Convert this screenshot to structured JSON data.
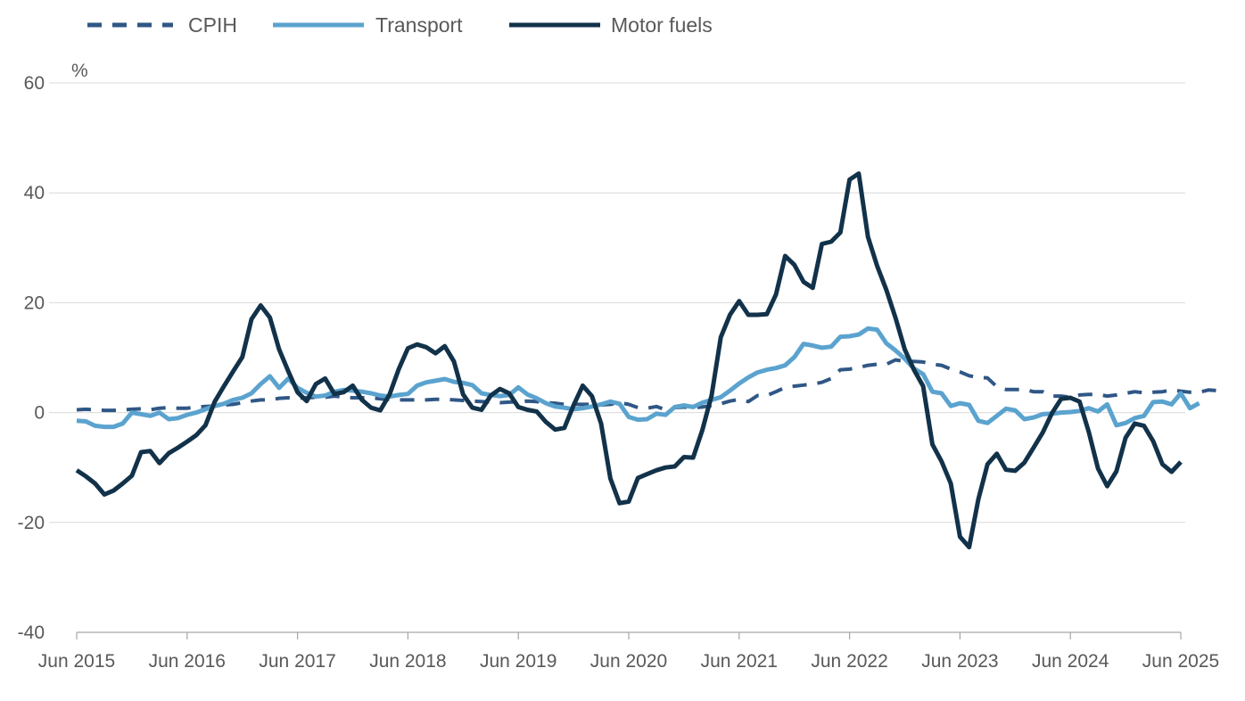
{
  "chart_data": {
    "type": "line",
    "ylabel": "%",
    "ylim": [
      -40,
      60
    ],
    "yticks": [
      -40,
      -20,
      0,
      20,
      40,
      60
    ],
    "x_start": "2015-06",
    "x_end": "2025-06",
    "xticks": [
      "Jun 2015",
      "Jun 2016",
      "Jun 2017",
      "Jun 2018",
      "Jun 2019",
      "Jun 2020",
      "Jun 2021",
      "Jun 2022",
      "Jun 2023",
      "Jun 2024",
      "Jun 2025"
    ],
    "grid": true,
    "legend_position": "top-left",
    "series": [
      {
        "name": "CPIH",
        "color": "#2f5786",
        "style": "dashed",
        "values": [
          0.5,
          0.6,
          0.5,
          0.4,
          0.4,
          0.5,
          0.6,
          0.7,
          0.5,
          0.8,
          0.9,
          0.8,
          0.8,
          1.0,
          1.1,
          1.2,
          1.4,
          1.5,
          1.8,
          2.1,
          2.3,
          2.3,
          2.6,
          2.7,
          2.6,
          2.7,
          2.8,
          2.8,
          3.0,
          2.8,
          2.7,
          2.7,
          2.7,
          2.5,
          2.4,
          2.3,
          2.3,
          2.3,
          2.3,
          2.4,
          2.4,
          2.3,
          2.2,
          2.1,
          2.0,
          1.9,
          1.8,
          1.9,
          2.0,
          2.1,
          2.0,
          1.8,
          1.7,
          1.5,
          1.5,
          1.5,
          1.5,
          1.4,
          1.5,
          1.8,
          1.5,
          0.9,
          0.8,
          1.1,
          0.5,
          0.9,
          1.0,
          0.9,
          1.0,
          1.3,
          1.6,
          2.1,
          2.4,
          2.0,
          3.1,
          3.1,
          3.8,
          4.6,
          4.8,
          5.0,
          5.2,
          5.5,
          6.2,
          7.8,
          7.9,
          8.2,
          8.6,
          8.8,
          8.8,
          9.6,
          9.3,
          9.3,
          9.2,
          8.8,
          8.6,
          7.9,
          7.4,
          6.7,
          6.4,
          6.3,
          4.7,
          4.2,
          4.2,
          4.2,
          3.8,
          3.8,
          3.0,
          3.0,
          2.8,
          3.2,
          3.3,
          3.3,
          3.0,
          3.2,
          3.5,
          3.8,
          3.6,
          3.7,
          3.8,
          4.1,
          3.9,
          3.7,
          3.7,
          4.1,
          4.0
        ]
      },
      {
        "name": "Transport",
        "color": "#5ba3cf",
        "style": "solid",
        "values": [
          -1.5,
          -1.6,
          -2.4,
          -2.6,
          -2.6,
          -2.0,
          0.0,
          -0.3,
          -0.6,
          0.0,
          -1.2,
          -1.0,
          -0.4,
          0.0,
          0.6,
          1.2,
          1.6,
          2.3,
          2.7,
          3.5,
          5.2,
          6.6,
          4.5,
          6.2,
          4.5,
          3.6,
          2.9,
          3.1,
          3.8,
          4.1,
          4.0,
          3.8,
          3.5,
          3.1,
          2.9,
          3.2,
          3.4,
          4.9,
          5.5,
          5.8,
          6.1,
          5.6,
          5.4,
          5.0,
          3.5,
          3.2,
          3.0,
          3.2,
          4.6,
          3.3,
          2.6,
          1.7,
          1.1,
          0.9,
          0.6,
          0.8,
          1.1,
          1.5,
          2.0,
          1.6,
          -0.8,
          -1.3,
          -1.2,
          -0.2,
          -0.4,
          1.0,
          1.3,
          1.0,
          1.8,
          2.3,
          2.8,
          4.0,
          5.3,
          6.4,
          7.3,
          7.8,
          8.1,
          8.6,
          10.1,
          12.5,
          12.2,
          11.8,
          12.0,
          13.8,
          13.9,
          14.2,
          15.3,
          15.1,
          12.6,
          11.3,
          9.8,
          8.0,
          7.0,
          3.8,
          3.5,
          1.2,
          1.7,
          1.4,
          -1.5,
          -1.9,
          -0.6,
          0.7,
          0.4,
          -1.2,
          -0.9,
          -0.3,
          -0.2,
          0.0,
          0.1,
          0.3,
          0.8,
          0.2,
          1.5,
          -2.3,
          -1.9,
          -1.0,
          -0.6,
          1.9,
          2.0,
          1.5,
          3.5,
          0.8,
          1.7
        ]
      },
      {
        "name": "Motor fuels",
        "color": "#12324a",
        "style": "solid",
        "values": [
          -10.5,
          -11.6,
          -12.9,
          -14.9,
          -14.2,
          -12.9,
          -11.5,
          -7.2,
          -7.0,
          -9.2,
          -7.4,
          -6.4,
          -5.3,
          -4.1,
          -2.3,
          2.0,
          4.8,
          7.5,
          10.1,
          17.0,
          19.5,
          17.3,
          11.5,
          7.5,
          3.7,
          2.1,
          5.2,
          6.2,
          3.4,
          3.7,
          4.9,
          2.3,
          0.9,
          0.4,
          3.3,
          7.9,
          11.7,
          12.4,
          11.9,
          10.8,
          12.1,
          9.3,
          3.3,
          0.9,
          0.5,
          3.1,
          4.3,
          3.5,
          1.0,
          0.5,
          0.2,
          -1.7,
          -3.1,
          -2.8,
          1.3,
          4.9,
          3.0,
          -2.0,
          -12.0,
          -16.5,
          -16.2,
          -11.9,
          -11.2,
          -10.5,
          -10.0,
          -9.8,
          -8.1,
          -8.2,
          -3.2,
          3.1,
          13.7,
          17.8,
          20.3,
          17.8,
          17.8,
          17.9,
          21.5,
          28.5,
          26.9,
          23.8,
          22.7,
          30.7,
          31.1,
          32.8,
          42.4,
          43.5,
          32.0,
          26.7,
          22.3,
          17.2,
          11.5,
          7.8,
          4.8,
          -5.8,
          -8.9,
          -12.9,
          -22.6,
          -24.5,
          -15.8,
          -9.4,
          -7.5,
          -10.4,
          -10.6,
          -9.1,
          -6.4,
          -3.6,
          -0.1,
          2.5,
          2.7,
          2.0,
          -3.5,
          -10.2,
          -13.4,
          -10.7,
          -4.6,
          -2.0,
          -2.4,
          -5.2,
          -9.4,
          -10.8,
          -9.0
        ]
      }
    ]
  }
}
